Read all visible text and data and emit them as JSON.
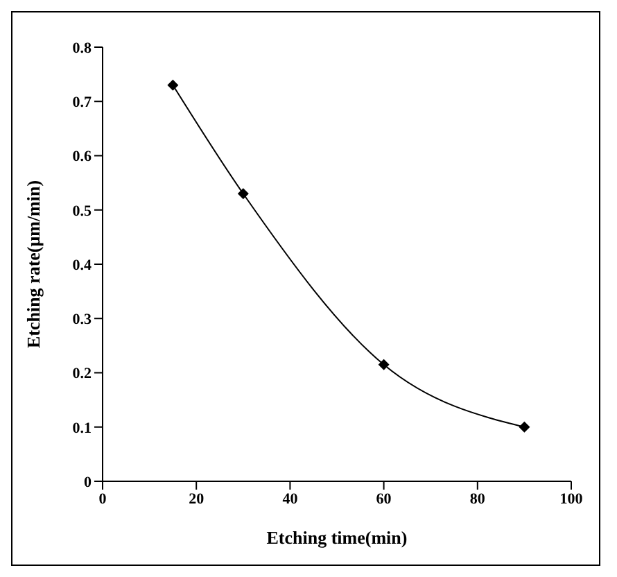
{
  "chart_data": {
    "type": "line",
    "xlabel": "Etching time(min)",
    "ylabel": "Etching rate(μm/min)",
    "x": [
      15,
      30,
      60,
      90
    ],
    "series": [
      {
        "color": "#000000",
        "values": [
          0.73,
          0.53,
          0.215,
          0.1
        ]
      }
    ],
    "xlim": [
      0,
      100
    ],
    "xticks": [
      0,
      20,
      40,
      60,
      80,
      100
    ],
    "ylim": [
      0,
      0.8
    ],
    "yticks": [
      0,
      0.1,
      0.2,
      0.3,
      0.4,
      0.5,
      0.6,
      0.7,
      0.8
    ],
    "marker": "diamond",
    "line_style": "solid",
    "grid": false,
    "legend": false
  }
}
